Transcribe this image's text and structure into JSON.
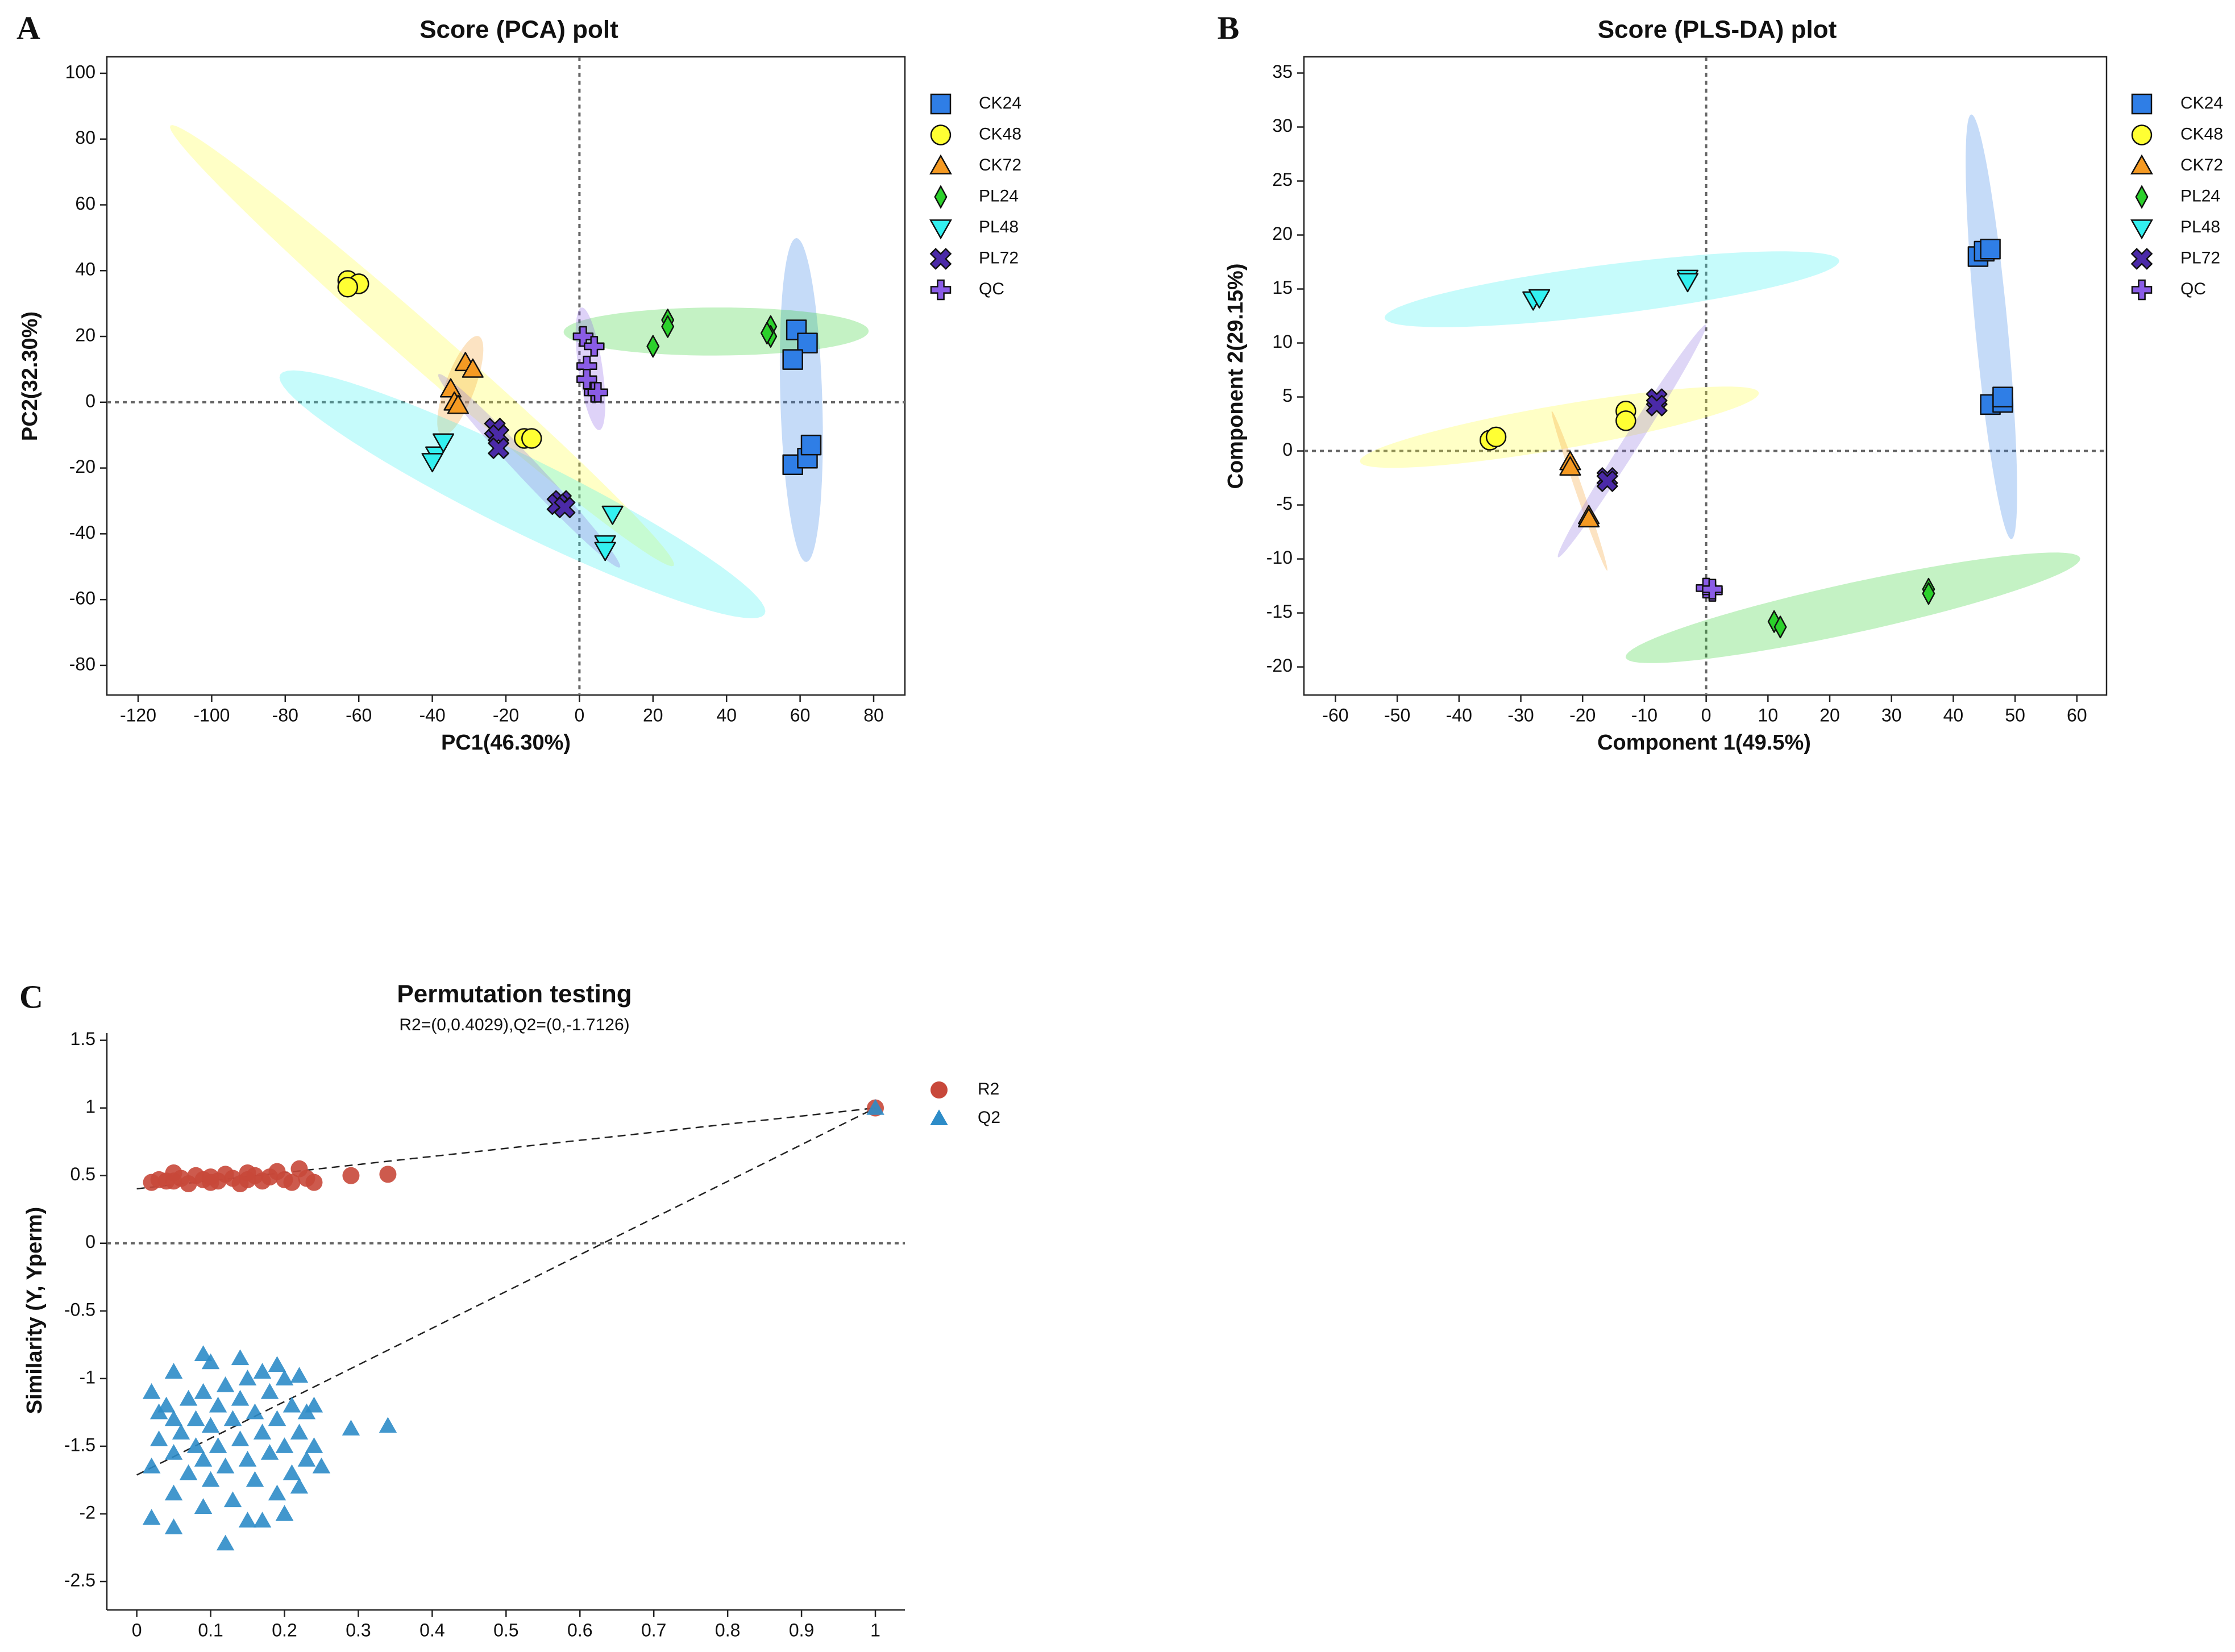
{
  "chart_data": [
    {
      "type": "scatter",
      "panel": "A",
      "title": "Score (PCA) polt",
      "x_label": "PC1(46.30%)",
      "y_label": "PC2(32.30%)",
      "xlim": [
        -128.5,
        88.5
      ],
      "ylim": [
        -89,
        105
      ],
      "xticks": [
        -120,
        -100,
        -80,
        -60,
        -40,
        -20,
        0,
        20,
        40,
        60,
        80
      ],
      "yticks": [
        -80,
        -60,
        -40,
        -20,
        0,
        20,
        40,
        60,
        80,
        100
      ],
      "zero_lines": "both",
      "ellipses": true,
      "frame": "box",
      "series": [
        {
          "name": "CK24",
          "color": "#2f7ee6",
          "marker": "square",
          "x": [
            59,
            62,
            58,
            58,
            62,
            63
          ],
          "values": [
            22,
            18,
            13,
            -19,
            -17,
            -13
          ]
        },
        {
          "name": "CK48",
          "color": "#ffff33",
          "marker": "circle",
          "x": [
            -63,
            -60,
            -63,
            -15,
            -13
          ],
          "values": [
            37,
            36,
            35,
            -11,
            -11
          ]
        },
        {
          "name": "CK72",
          "color": "#f59a23",
          "marker": "triangle",
          "x": [
            -31,
            -29,
            -35,
            -34,
            -33
          ],
          "values": [
            12,
            10,
            4,
            0,
            -1
          ]
        },
        {
          "name": "PL24",
          "color": "#2bd12b",
          "marker": "diamond",
          "x": [
            24,
            24,
            20,
            52,
            52,
            51
          ],
          "values": [
            25,
            23,
            17,
            23,
            20,
            21
          ]
        },
        {
          "name": "PL48",
          "color": "#33f0f0",
          "marker": "triangle-down",
          "x": [
            -39,
            -40,
            -37,
            9,
            7,
            7
          ],
          "values": [
            -16,
            -18,
            -12,
            -34,
            -43,
            -45
          ]
        },
        {
          "name": "PL72",
          "color": "#4b2aa8",
          "marker": "cross",
          "x": [
            -23,
            -22,
            -22,
            -5,
            -6,
            -4
          ],
          "values": [
            -8,
            -10,
            -14,
            -30,
            -31,
            -32
          ]
        },
        {
          "name": "QC",
          "color": "#8a5ce6",
          "marker": "plus",
          "x": [
            1,
            4,
            2,
            2,
            4,
            5
          ],
          "values": [
            20,
            17,
            11,
            7,
            3,
            3
          ]
        }
      ]
    },
    {
      "type": "scatter",
      "panel": "B",
      "title": "Score (PLS-DA) plot",
      "x_label": "Component 1(49.5%)",
      "y_label": "Component 2(29.15%)",
      "xlim": [
        -65.1,
        64.8
      ],
      "ylim": [
        -22.6,
        36.5
      ],
      "xticks": [
        -60,
        -50,
        -40,
        -30,
        -20,
        -10,
        0,
        10,
        20,
        30,
        40,
        50,
        60
      ],
      "yticks": [
        -20,
        -15,
        -10,
        -5,
        0,
        5,
        10,
        15,
        20,
        25,
        30,
        35
      ],
      "zero_lines": "both",
      "ellipses": true,
      "frame": "box",
      "series": [
        {
          "name": "CK24",
          "color": "#2f7ee6",
          "marker": "square",
          "x": [
            44,
            45,
            46,
            46,
            48,
            48
          ],
          "values": [
            18,
            18.5,
            18.7,
            4.3,
            4.5,
            5
          ]
        },
        {
          "name": "CK48",
          "color": "#ffff33",
          "marker": "circle",
          "x": [
            -35,
            -34,
            -13,
            -13
          ],
          "values": [
            1,
            1.3,
            3.7,
            2.8
          ]
        },
        {
          "name": "CK72",
          "color": "#f59a23",
          "marker": "triangle",
          "x": [
            -22,
            -22,
            -19,
            -19
          ],
          "values": [
            -1,
            -1.5,
            -6,
            -6.3
          ]
        },
        {
          "name": "PL24",
          "color": "#2bd12b",
          "marker": "diamond",
          "x": [
            11,
            12,
            36,
            36
          ],
          "values": [
            -15.8,
            -16.3,
            -12.8,
            -13.2
          ]
        },
        {
          "name": "PL48",
          "color": "#33f0f0",
          "marker": "triangle-down",
          "x": [
            -28,
            -27,
            -3,
            -3
          ],
          "values": [
            14,
            14.2,
            16,
            15.7
          ]
        },
        {
          "name": "PL72",
          "color": "#4b2aa8",
          "marker": "cross",
          "x": [
            -8,
            -8,
            -16,
            -16
          ],
          "values": [
            4.8,
            4.2,
            -2.5,
            -2.8
          ]
        },
        {
          "name": "QC",
          "color": "#8a5ce6",
          "marker": "plus",
          "x": [
            0,
            1,
            1
          ],
          "values": [
            -12.7,
            -13,
            -12.8
          ]
        }
      ]
    },
    {
      "type": "scatter",
      "panel": "C",
      "title": "Permutation testing",
      "subtitle": "R2=(0,0.4029),Q2=(0,-1.7126)",
      "y_label": "Similarity (Y, Yperm)",
      "xlim": [
        -0.0405,
        1.04
      ],
      "ylim": [
        -2.71,
        1.553
      ],
      "xticks": [
        0,
        0.1,
        0.2,
        0.3,
        0.4,
        0.5,
        0.6,
        0.7,
        0.8,
        0.9,
        1
      ],
      "yticks": [
        -2.5,
        -2,
        -1.5,
        -1,
        -0.5,
        0,
        0.5,
        1,
        1.5
      ],
      "zero_lines": "y",
      "ellipses": false,
      "frame": "axes",
      "series": [
        {
          "name": "R2",
          "color": "#c8483a",
          "marker": "circle",
          "fit_intercept": 0.4029,
          "x": [
            0.02,
            0.03,
            0.04,
            0.05,
            0.05,
            0.06,
            0.07,
            0.08,
            0.09,
            0.1,
            0.1,
            0.11,
            0.12,
            0.13,
            0.14,
            0.15,
            0.15,
            0.16,
            0.17,
            0.18,
            0.19,
            0.2,
            0.21,
            0.22,
            0.23,
            0.24,
            0.29,
            0.34,
            1
          ],
          "values": [
            0.45,
            0.47,
            0.46,
            0.52,
            0.46,
            0.48,
            0.44,
            0.5,
            0.47,
            0.45,
            0.49,
            0.46,
            0.51,
            0.48,
            0.44,
            0.47,
            0.52,
            0.5,
            0.46,
            0.49,
            0.53,
            0.47,
            0.45,
            0.55,
            0.48,
            0.45,
            0.5,
            0.51,
            1
          ]
        },
        {
          "name": "Q2",
          "color": "#2d8cc8",
          "marker": "triangle",
          "fit_intercept": -1.7126,
          "x": [
            0.02,
            0.02,
            0.02,
            0.03,
            0.03,
            0.04,
            0.05,
            0.05,
            0.05,
            0.05,
            0.05,
            0.06,
            0.07,
            0.07,
            0.08,
            0.08,
            0.09,
            0.09,
            0.09,
            0.09,
            0.1,
            0.1,
            0.1,
            0.11,
            0.11,
            0.12,
            0.12,
            0.12,
            0.13,
            0.13,
            0.14,
            0.14,
            0.14,
            0.15,
            0.15,
            0.15,
            0.16,
            0.16,
            0.17,
            0.17,
            0.17,
            0.18,
            0.18,
            0.19,
            0.19,
            0.19,
            0.2,
            0.2,
            0.2,
            0.21,
            0.21,
            0.22,
            0.22,
            0.22,
            0.23,
            0.23,
            0.24,
            0.24,
            0.25,
            0.29,
            0.34,
            1
          ],
          "values": [
            -1.1,
            -1.65,
            -2.03,
            -1.25,
            -1.45,
            -1.2,
            -0.95,
            -1.3,
            -1.55,
            -1.85,
            -2.1,
            -1.4,
            -1.15,
            -1.7,
            -1.3,
            -1.5,
            -0.82,
            -1.1,
            -1.6,
            -1.95,
            -0.88,
            -1.35,
            -1.75,
            -1.2,
            -1.5,
            -1.05,
            -1.65,
            -2.22,
            -1.3,
            -1.9,
            -0.85,
            -1.15,
            -1.45,
            -1.0,
            -1.6,
            -2.05,
            -1.25,
            -1.75,
            -0.95,
            -1.4,
            -2.05,
            -1.1,
            -1.55,
            -0.9,
            -1.3,
            -1.85,
            -1.0,
            -1.5,
            -2.0,
            -1.2,
            -1.7,
            -0.98,
            -1.4,
            -1.8,
            -1.25,
            -1.6,
            -1.2,
            -1.5,
            -1.65,
            -1.37,
            -1.35,
            1
          ]
        }
      ]
    }
  ]
}
